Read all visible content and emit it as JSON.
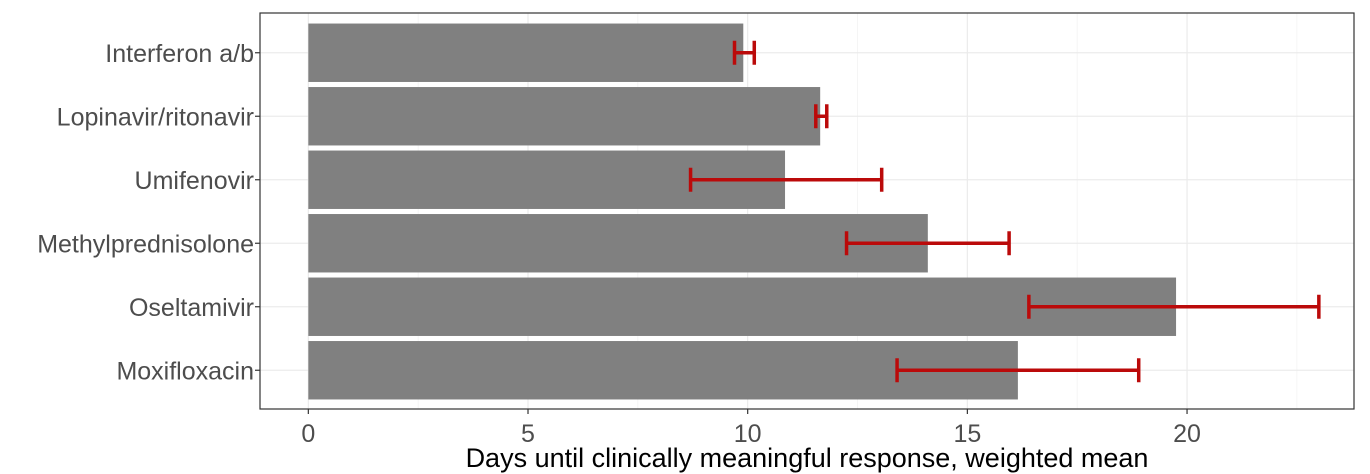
{
  "chart_data": {
    "type": "bar",
    "orientation": "horizontal",
    "title": "",
    "xlabel": "Days until clinically meaningful response, weighted mean",
    "ylabel": "",
    "xlim": [
      -1.1,
      23.8
    ],
    "x_ticks": [
      0,
      5,
      10,
      15,
      20
    ],
    "x_tick_labels": [
      "0",
      "5",
      "10",
      "15",
      "20"
    ],
    "grid": true,
    "categories": [
      "Interferon a/b",
      "Lopinavir/ritonavir",
      "Umifenovir",
      "Methylprednisolone",
      "Oseltamivir",
      "Moxifloxacin"
    ],
    "values": [
      9.9,
      11.65,
      10.85,
      14.1,
      19.75,
      16.15
    ],
    "error_low": [
      9.7,
      11.55,
      8.7,
      12.25,
      16.4,
      13.4
    ],
    "error_high": [
      10.15,
      11.8,
      13.05,
      15.95,
      23.0,
      18.9
    ],
    "bar_color": "#808080",
    "error_color": "#bb0a0a"
  }
}
